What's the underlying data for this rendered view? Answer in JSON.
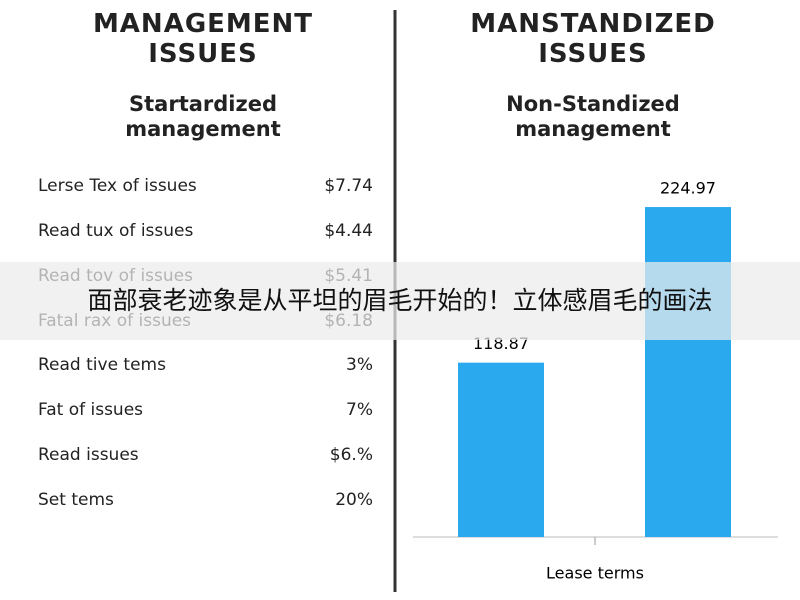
{
  "left": {
    "title": "MANAGEMENT ISSUES",
    "subtitle": "Startardized management",
    "rows": [
      [
        "Lerse Tex of issues",
        "$7.74"
      ],
      [
        "Read tux of issues",
        "$4.44"
      ],
      [
        "Read tov of issues",
        "$5.41"
      ],
      [
        "Fatal rax of issues",
        "$6.18"
      ],
      [
        "Read tive tems",
        "3%"
      ],
      [
        "Fat of issues",
        "7%"
      ],
      [
        "Read issues",
        "$6.%"
      ],
      [
        "Set tems",
        "20%"
      ]
    ]
  },
  "chart_data": {
    "type": "bar",
    "title": "MANSTANDIZED ISSUES",
    "subtitle": "Non-Standized management",
    "categories": [
      null,
      null
    ],
    "values": [
      118.87,
      224.97
    ],
    "color": "#2aa9ef",
    "xlabel": "Lease terms",
    "ylim": [
      0,
      240
    ]
  },
  "banner": "面部衰老迹象是从平坦的眉毛开始的！立体感眉毛的画法"
}
